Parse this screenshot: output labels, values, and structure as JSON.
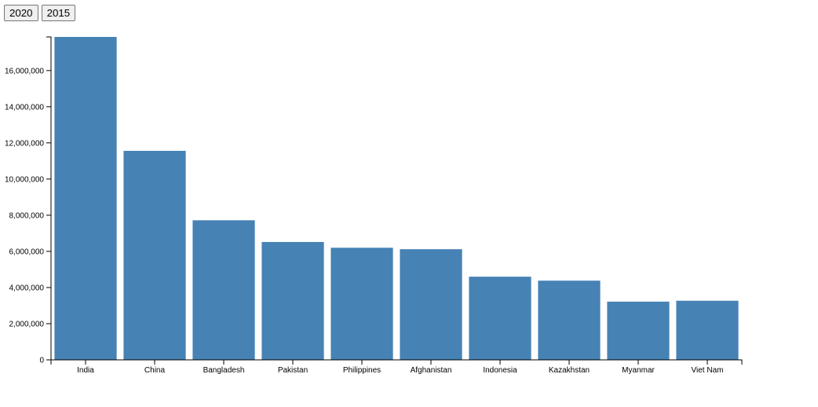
{
  "controls": {
    "buttons": [
      {
        "label": "2020"
      },
      {
        "label": "2015"
      }
    ]
  },
  "chart_data": {
    "type": "bar",
    "title": "",
    "xlabel": "",
    "ylabel": "",
    "categories": [
      "India",
      "China",
      "Bangladesh",
      "Pakistan",
      "Philippines",
      "Afghanistan",
      "Indonesia",
      "Kazakhstan",
      "Myanmar",
      "Viet Nam"
    ],
    "values": [
      17860000,
      11560000,
      7720000,
      6520000,
      6200000,
      6120000,
      4600000,
      4380000,
      3220000,
      3270000
    ],
    "ylim": [
      0,
      17860000
    ],
    "yticks": [
      0,
      2000000,
      4000000,
      6000000,
      8000000,
      10000000,
      12000000,
      14000000,
      16000000
    ],
    "ytick_labels": [
      "0",
      "2,000,000",
      "4,000,000",
      "6,000,000",
      "8,000,000",
      "10,000,000",
      "12,000,000",
      "14,000,000",
      "16,000,000"
    ],
    "bar_color": "#4682b4",
    "grid": false
  }
}
